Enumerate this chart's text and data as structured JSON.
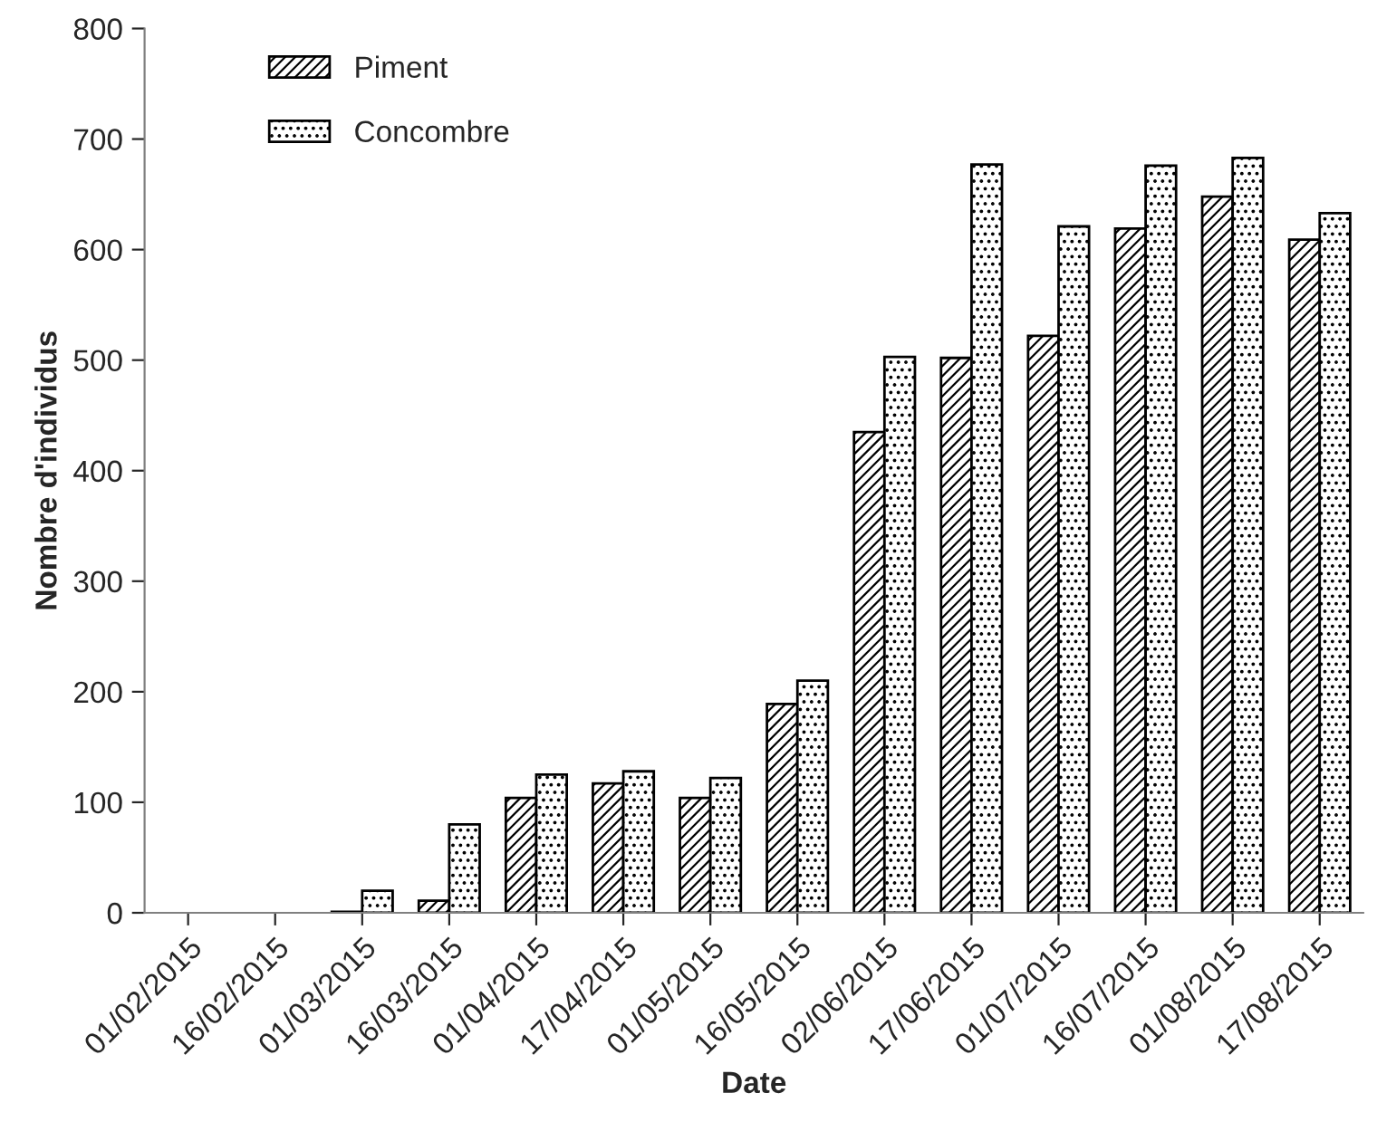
{
  "chart_data": {
    "type": "bar",
    "xlabel": "Date",
    "ylabel": "Nombre d'individus",
    "categories": [
      "01/02/2015",
      "16/02/2015",
      "01/03/2015",
      "16/03/2015",
      "01/04/2015",
      "17/04/2015",
      "01/05/2015",
      "16/05/2015",
      "02/06/2015",
      "17/06/2015",
      "01/07/2015",
      "16/07/2015",
      "01/08/2015",
      "17/08/2015"
    ],
    "series": [
      {
        "name": "Piment",
        "color": "#000000",
        "values": [
          0,
          0,
          1,
          11,
          104,
          117,
          104,
          189,
          435,
          502,
          522,
          619,
          648,
          609
        ]
      },
      {
        "name": "Concombre",
        "color": "#000000",
        "values": [
          0,
          0,
          20,
          80,
          125,
          128,
          122,
          210,
          503,
          677,
          621,
          676,
          683,
          633
        ]
      }
    ],
    "ylim": [
      0,
      800
    ],
    "yticks": [
      0,
      100,
      200,
      300,
      400,
      500,
      600,
      700,
      800
    ],
    "grid": false,
    "legend": "top left"
  }
}
